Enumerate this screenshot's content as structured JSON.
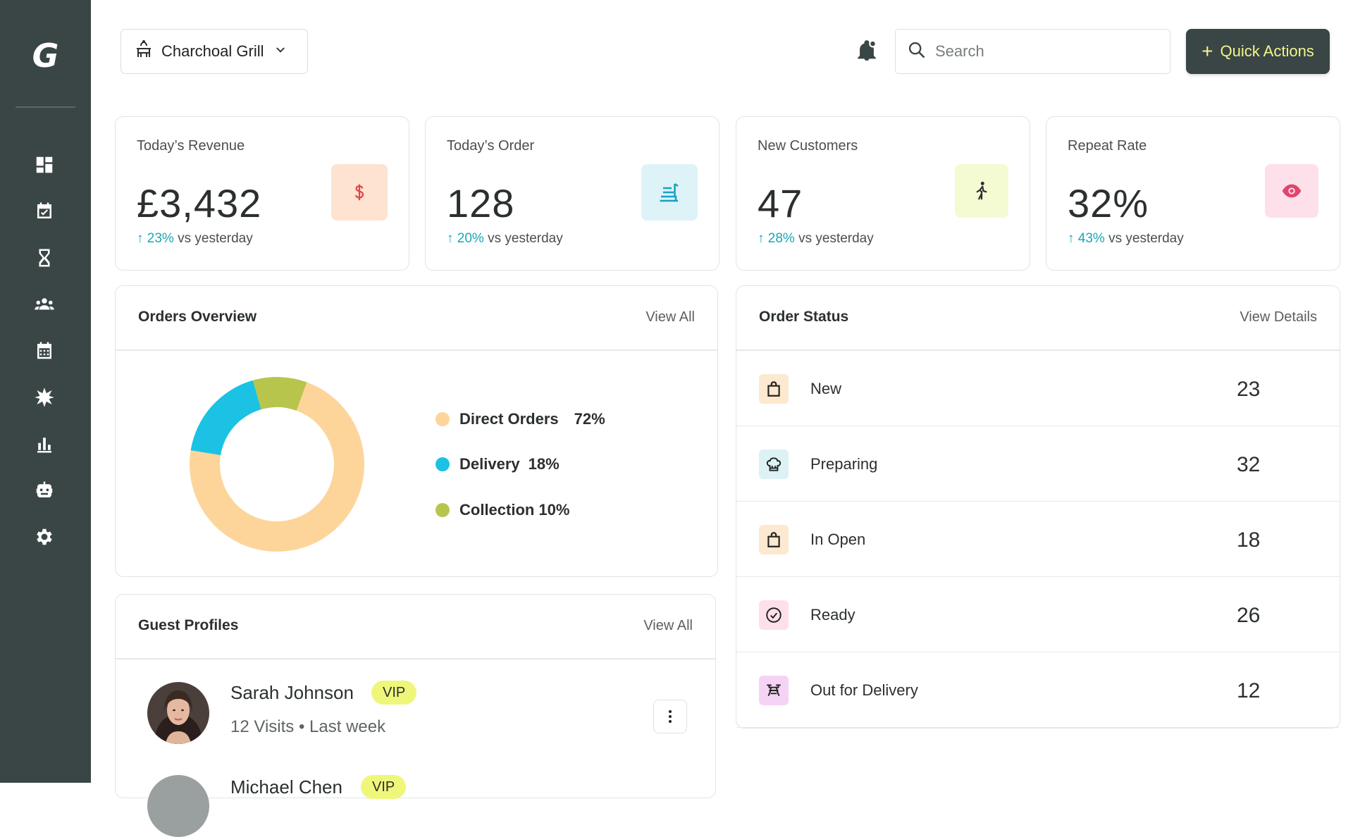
{
  "sidebar": {
    "logo": "G",
    "items": [
      {
        "icon": "dashboard-icon"
      },
      {
        "icon": "calendar-check-icon"
      },
      {
        "icon": "hourglass-icon"
      },
      {
        "icon": "people-icon"
      },
      {
        "icon": "calendar-grid-icon"
      },
      {
        "icon": "star-burst-icon"
      },
      {
        "icon": "bar-chart-icon"
      },
      {
        "icon": "robot-icon"
      },
      {
        "icon": "gear-icon"
      }
    ]
  },
  "header": {
    "store_name": "Charchoal Grill",
    "search_placeholder": "Search",
    "quick_actions_label": "Quick Actions"
  },
  "stats": [
    {
      "title": "Today’s Revenue",
      "value": "£3,432",
      "change_pct": "23%",
      "change_text": "vs yesterday",
      "icon": "dollar-icon",
      "icon_bg": "#fde3d0",
      "icon_color": "#e0464f"
    },
    {
      "title": "Today’s Order",
      "value": "128",
      "change_pct": "20%",
      "change_text": "vs yesterday",
      "icon": "food-tray-icon",
      "icon_bg": "#ddf3f8",
      "icon_color": "#17a2c0"
    },
    {
      "title": "New Customers",
      "value": "47",
      "change_pct": "28%",
      "change_text": "vs yesterday",
      "icon": "walking-person-icon",
      "icon_bg": "#f4fbd2",
      "icon_color": "#2b2f30"
    },
    {
      "title": "Repeat Rate",
      "value": "32%",
      "change_pct": "43%",
      "change_text": "vs yesterday",
      "icon": "eye-icon",
      "icon_bg": "#fde0ea",
      "icon_color": "#e0456c"
    }
  ],
  "orders_overview": {
    "title": "Orders Overview",
    "link": "View All",
    "legend": [
      {
        "label": "Direct Orders",
        "pct": "72%",
        "color": "#fdd59b"
      },
      {
        "label": "Delivery",
        "pct": "18%",
        "color": "#1bc2e3"
      },
      {
        "label": "Collection",
        "pct": "10%",
        "color": "#b8c54d"
      }
    ]
  },
  "chart_data": {
    "type": "pie",
    "categories": [
      "Direct Orders",
      "Delivery",
      "Collection"
    ],
    "values": [
      72,
      18,
      10
    ],
    "colors": [
      "#fdd59b",
      "#1bc2e3",
      "#b8c54d"
    ],
    "title": "",
    "donut": true
  },
  "order_status": {
    "title": "Order Status",
    "link": "View Details",
    "rows": [
      {
        "label": "New",
        "count": "23",
        "icon": "shopping-bag-icon",
        "icon_bg": "#fde9cf"
      },
      {
        "label": "Preparing",
        "count": "32",
        "icon": "chef-hat-icon",
        "icon_bg": "#dcf2f4"
      },
      {
        "label": "In Open",
        "count": "18",
        "icon": "shopping-bag-icon",
        "icon_bg": "#fde9cf"
      },
      {
        "label": "Ready",
        "count": "26",
        "icon": "check-circle-icon",
        "icon_bg": "#fde0ea"
      },
      {
        "label": "Out for Delivery",
        "count": "12",
        "icon": "delivery-drone-icon",
        "icon_bg": "#f5d3f4"
      }
    ]
  },
  "guest_profiles": {
    "title": "Guest Profiles",
    "link": "View All",
    "guests": [
      {
        "name": "Sarah Johnson",
        "badge": "VIP",
        "visits": "12 Visits",
        "last": "Last week"
      },
      {
        "name": "Michael Chen",
        "badge": "VIP"
      }
    ]
  }
}
